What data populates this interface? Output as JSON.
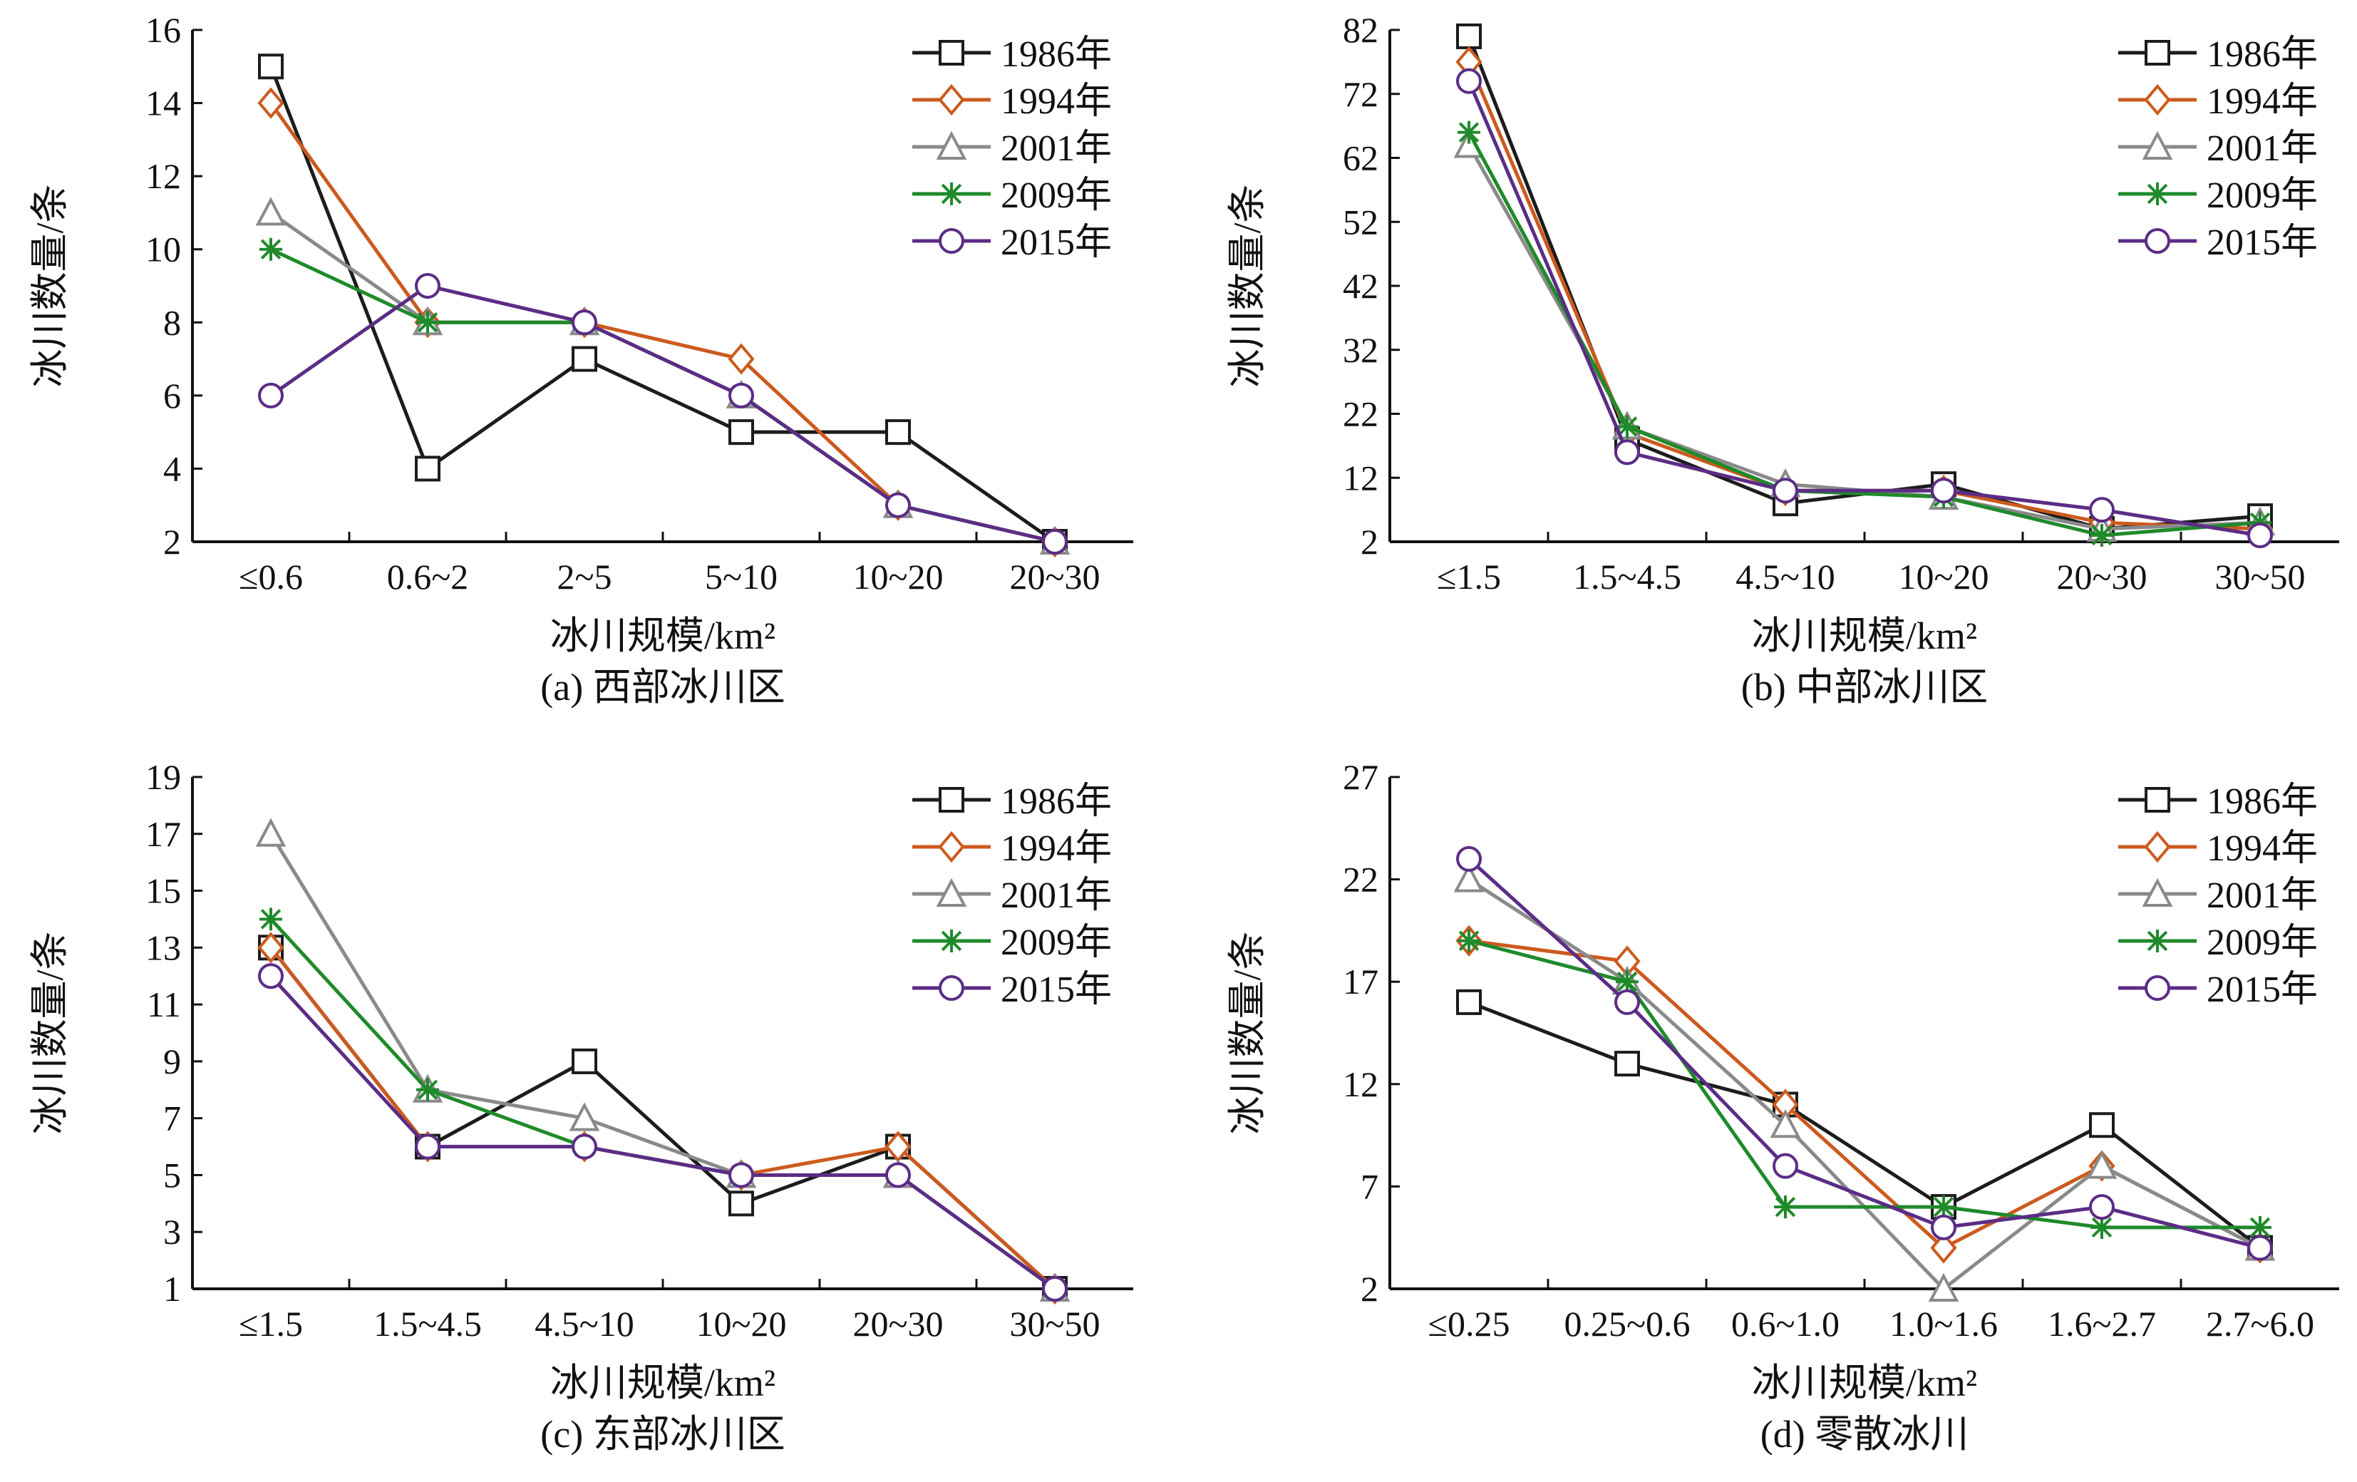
{
  "series_styles": [
    {
      "name": "1986年",
      "color": "#1c1c1c",
      "marker": "square"
    },
    {
      "name": "1994年",
      "color": "#cc5a1e",
      "marker": "diamond"
    },
    {
      "name": "2001年",
      "color": "#8a8a8a",
      "marker": "triangle"
    },
    {
      "name": "2009年",
      "color": "#1f8a2a",
      "marker": "star"
    },
    {
      "name": "2015年",
      "color": "#5b2d86",
      "marker": "circle"
    }
  ],
  "chart_data": [
    {
      "type": "line",
      "caption": "(a) 西部冰川区",
      "xlabel": "冰川规模/km²",
      "ylabel": "冰川数量/条",
      "categories": [
        "≤0.6",
        "0.6~2",
        "2~5",
        "5~10",
        "10~20",
        "20~30"
      ],
      "ylim": [
        2,
        16
      ],
      "yticks": [
        2,
        4,
        6,
        8,
        10,
        12,
        14,
        16
      ],
      "grid": false,
      "legend": "top-right",
      "series": [
        {
          "name": "1986年",
          "values": [
            15,
            4,
            7,
            5,
            5,
            2
          ]
        },
        {
          "name": "1994年",
          "values": [
            14,
            8,
            8,
            7,
            3,
            2
          ]
        },
        {
          "name": "2001年",
          "values": [
            11,
            8,
            8,
            6,
            3,
            2
          ]
        },
        {
          "name": "2009年",
          "values": [
            10,
            8,
            8,
            6,
            3,
            2
          ]
        },
        {
          "name": "2015年",
          "values": [
            6,
            9,
            8,
            6,
            3,
            2
          ]
        }
      ]
    },
    {
      "type": "line",
      "caption": "(b) 中部冰川区",
      "xlabel": "冰川规模/km²",
      "ylabel": "冰川数量/条",
      "categories": [
        "≤1.5",
        "1.5~4.5",
        "4.5~10",
        "10~20",
        "20~30",
        "30~50"
      ],
      "ylim": [
        2,
        82
      ],
      "yticks": [
        2,
        12,
        22,
        32,
        42,
        52,
        62,
        72,
        82
      ],
      "grid": false,
      "legend": "top-right",
      "series": [
        {
          "name": "1986年",
          "values": [
            81,
            18,
            8,
            11,
            4,
            6
          ]
        },
        {
          "name": "1994年",
          "values": [
            77,
            19,
            10,
            10,
            5,
            4
          ]
        },
        {
          "name": "2001年",
          "values": [
            64,
            20,
            11,
            9,
            4,
            5
          ]
        },
        {
          "name": "2009年",
          "values": [
            66,
            20,
            10,
            9,
            3,
            5
          ]
        },
        {
          "name": "2015年",
          "values": [
            74,
            16,
            10,
            10,
            7,
            3
          ]
        }
      ]
    },
    {
      "type": "line",
      "caption": "(c) 东部冰川区",
      "xlabel": "冰川规模/km²",
      "ylabel": "冰川数量/条",
      "categories": [
        "≤1.5",
        "1.5~4.5",
        "4.5~10",
        "10~20",
        "20~30",
        "30~50"
      ],
      "ylim": [
        1,
        19
      ],
      "yticks": [
        1,
        3,
        5,
        7,
        9,
        11,
        13,
        15,
        17,
        19
      ],
      "grid": false,
      "legend": "top-right",
      "series": [
        {
          "name": "1986年",
          "values": [
            13,
            6,
            9,
            4,
            6,
            1
          ]
        },
        {
          "name": "1994年",
          "values": [
            13,
            6,
            6,
            5,
            6,
            1
          ]
        },
        {
          "name": "2001年",
          "values": [
            17,
            8,
            7,
            5,
            5,
            1
          ]
        },
        {
          "name": "2009年",
          "values": [
            14,
            8,
            6,
            5,
            5,
            1
          ]
        },
        {
          "name": "2015年",
          "values": [
            12,
            6,
            6,
            5,
            5,
            1
          ]
        }
      ]
    },
    {
      "type": "line",
      "caption": "(d) 零散冰川",
      "xlabel": "冰川规模/km²",
      "ylabel": "冰川数量/条",
      "categories": [
        "≤0.25",
        "0.25~0.6",
        "0.6~1.0",
        "1.0~1.6",
        "1.6~2.7",
        "2.7~6.0"
      ],
      "ylim": [
        2,
        27
      ],
      "yticks": [
        2,
        7,
        12,
        17,
        22,
        27
      ],
      "grid": false,
      "legend": "top-right",
      "series": [
        {
          "name": "1986年",
          "values": [
            16,
            13,
            11,
            6,
            10,
            4
          ]
        },
        {
          "name": "1994年",
          "values": [
            19,
            18,
            11,
            4,
            8,
            4
          ]
        },
        {
          "name": "2001年",
          "values": [
            22,
            17,
            10,
            2,
            8,
            4
          ]
        },
        {
          "name": "2009年",
          "values": [
            19,
            17,
            6,
            6,
            5,
            5
          ]
        },
        {
          "name": "2015年",
          "values": [
            23,
            16,
            8,
            5,
            6,
            4
          ]
        }
      ]
    }
  ]
}
